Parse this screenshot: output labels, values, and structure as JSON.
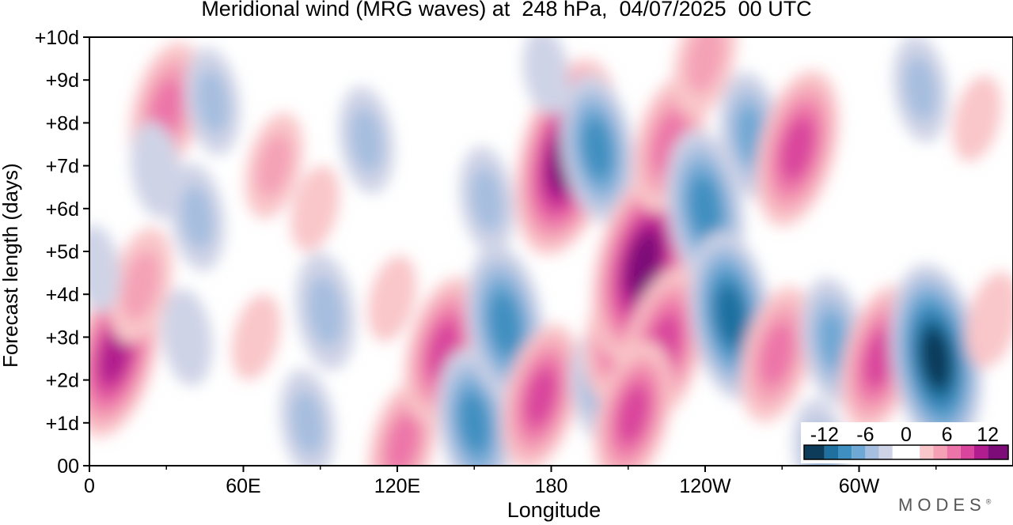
{
  "chart_data": {
    "type": "heatmap",
    "title": "Meridional wind (MRG waves) at  248 hPa,  04/07/2025  00 UTC",
    "xlabel": "Longitude",
    "ylabel": "Forecast length (days)",
    "x_ticks": [
      "0",
      "60E",
      "120E",
      "180",
      "120W",
      "60W"
    ],
    "x_tick_values": [
      0,
      60,
      120,
      180,
      240,
      300
    ],
    "x_range": [
      0,
      360
    ],
    "y_ticks": [
      "00",
      "+1d",
      "+2d",
      "+3d",
      "+4d",
      "+5d",
      "+6d",
      "+7d",
      "+8d",
      "+9d",
      "+10d"
    ],
    "y_tick_values": [
      0,
      1,
      2,
      3,
      4,
      5,
      6,
      7,
      8,
      9,
      10
    ],
    "y_range": [
      0,
      10
    ],
    "colorbar": {
      "labels": [
        "-12",
        "-6",
        "0",
        "6",
        "12"
      ],
      "label_values": [
        -12,
        -6,
        0,
        6,
        12
      ],
      "range": [
        -15,
        15
      ],
      "levels": [
        -15,
        -12,
        -10,
        -8,
        -6,
        -4,
        -2,
        2,
        4,
        6,
        8,
        10,
        12,
        15
      ],
      "colors": [
        "#0d3b5a",
        "#1f6f9f",
        "#3f8fc0",
        "#6fa8d4",
        "#a6bedf",
        "#cfd3e6",
        "#ffffff",
        "#f9c6c9",
        "#f4a1b6",
        "#ec74a8",
        "#d9449c",
        "#b11c8e",
        "#7d0b78"
      ]
    },
    "features": [
      {
        "lon": 10,
        "day": 2.6,
        "value": 11
      },
      {
        "lon": 30,
        "day": 8.3,
        "value": 8
      },
      {
        "lon": 20,
        "day": 4.2,
        "value": 6
      },
      {
        "lon": 48,
        "day": 8.5,
        "value": -5
      },
      {
        "lon": 42,
        "day": 5.8,
        "value": -5
      },
      {
        "lon": 26,
        "day": 6.9,
        "value": -4
      },
      {
        "lon": 38,
        "day": 3.0,
        "value": -4
      },
      {
        "lon": 3,
        "day": 4.6,
        "value": -3
      },
      {
        "lon": 65,
        "day": 3.0,
        "value": 3
      },
      {
        "lon": 72,
        "day": 7.0,
        "value": 5
      },
      {
        "lon": 88,
        "day": 6.0,
        "value": 3
      },
      {
        "lon": 92,
        "day": 3.6,
        "value": -6
      },
      {
        "lon": 85,
        "day": 1.0,
        "value": -5
      },
      {
        "lon": 108,
        "day": 7.6,
        "value": -5
      },
      {
        "lon": 118,
        "day": 3.9,
        "value": 3
      },
      {
        "lon": 122,
        "day": 0.5,
        "value": 7
      },
      {
        "lon": 138,
        "day": 2.7,
        "value": 9
      },
      {
        "lon": 150,
        "day": 1.0,
        "value": -9
      },
      {
        "lon": 155,
        "day": 6.2,
        "value": -5
      },
      {
        "lon": 162,
        "day": 3.3,
        "value": -10
      },
      {
        "lon": 176,
        "day": 1.6,
        "value": 9
      },
      {
        "lon": 186,
        "day": 7.2,
        "value": 14
      },
      {
        "lon": 198,
        "day": 7.4,
        "value": -9
      },
      {
        "lon": 198,
        "day": 1.8,
        "value": -5
      },
      {
        "lon": 178,
        "day": 9.2,
        "value": -3
      },
      {
        "lon": 208,
        "day": 3.2,
        "value": 9
      },
      {
        "lon": 216,
        "day": 4.7,
        "value": 14
      },
      {
        "lon": 224,
        "day": 2.8,
        "value": 10
      },
      {
        "lon": 212,
        "day": 1.2,
        "value": 9
      },
      {
        "lon": 226,
        "day": 7.5,
        "value": 8
      },
      {
        "lon": 240,
        "day": 6.0,
        "value": -10
      },
      {
        "lon": 250,
        "day": 3.5,
        "value": -11
      },
      {
        "lon": 258,
        "day": 7.7,
        "value": -7
      },
      {
        "lon": 276,
        "day": 7.4,
        "value": 10
      },
      {
        "lon": 268,
        "day": 2.6,
        "value": 8
      },
      {
        "lon": 290,
        "day": 2.9,
        "value": -7
      },
      {
        "lon": 308,
        "day": 2.5,
        "value": 9
      },
      {
        "lon": 330,
        "day": 2.5,
        "value": -13
      },
      {
        "lon": 324,
        "day": 8.8,
        "value": -5
      },
      {
        "lon": 352,
        "day": 3.4,
        "value": 4
      },
      {
        "lon": 346,
        "day": 8.1,
        "value": 3
      },
      {
        "lon": 285,
        "day": 0.3,
        "value": -5
      },
      {
        "lon": 240,
        "day": 9.5,
        "value": 6
      }
    ]
  },
  "branding": {
    "text": "MODES",
    "mark": "®"
  }
}
